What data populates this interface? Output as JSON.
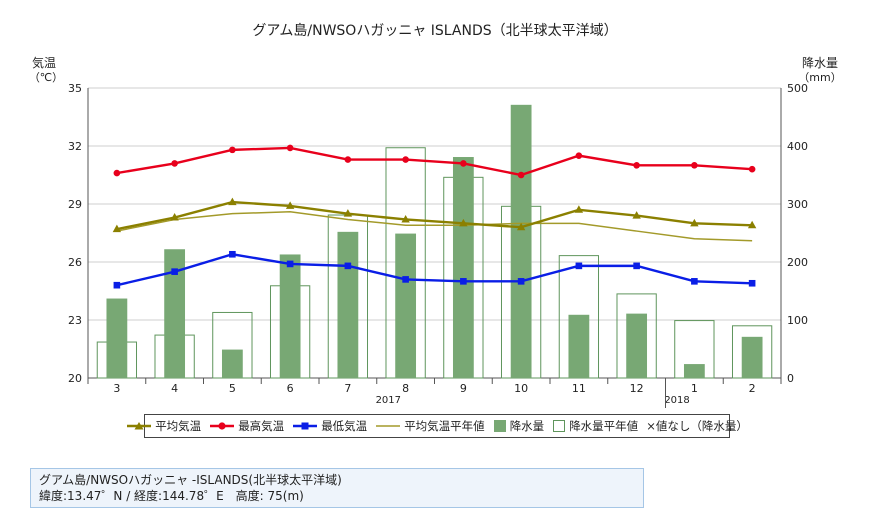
{
  "chart_data": {
    "type": "bar+line",
    "title": "グアム島/NWSOハガッニャ ISLANDS（北半球太平洋域）",
    "y_left_label": "気温",
    "y_left_unit": "（℃）",
    "y_right_label": "降水量",
    "y_right_unit": "（mm）",
    "y_left_range": [
      20,
      35
    ],
    "y_left_ticks": [
      20,
      23,
      26,
      29,
      32,
      35
    ],
    "y_right_range": [
      0,
      500
    ],
    "y_right_ticks": [
      0,
      100,
      200,
      300,
      400,
      500
    ],
    "categories": [
      "3",
      "4",
      "5",
      "6",
      "7",
      "8",
      "9",
      "10",
      "11",
      "12",
      "1",
      "2"
    ],
    "year_labels": [
      {
        "label": "2017",
        "category_index": 5
      },
      {
        "label": "2018",
        "category_index": 10
      }
    ],
    "grid": true,
    "legend_placement": "bottom",
    "series": [
      {
        "name": "平均気温",
        "kind": "line",
        "axis": "left",
        "marker": "triangle",
        "color": "#8b8000",
        "values": [
          27.7,
          28.3,
          29.1,
          28.9,
          28.5,
          28.2,
          28.0,
          27.8,
          28.7,
          28.4,
          28.0,
          27.9
        ]
      },
      {
        "name": "最高気温",
        "kind": "line",
        "axis": "left",
        "marker": "circle",
        "color": "#e8001c",
        "values": [
          30.6,
          31.1,
          31.8,
          31.9,
          31.3,
          31.3,
          31.1,
          30.5,
          31.5,
          31.0,
          31.0,
          30.8
        ]
      },
      {
        "name": "最低気温",
        "kind": "line",
        "axis": "left",
        "marker": "square",
        "color": "#0a1ee6",
        "values": [
          24.8,
          25.5,
          26.4,
          25.9,
          25.8,
          25.1,
          25.0,
          25.0,
          25.8,
          25.8,
          25.0,
          24.9
        ]
      },
      {
        "name": "平均気温平年値",
        "kind": "line",
        "axis": "left",
        "marker": "none",
        "color": "#a39a2a",
        "values": [
          27.6,
          28.2,
          28.5,
          28.6,
          28.2,
          27.9,
          27.9,
          28.0,
          28.0,
          27.6,
          27.2,
          27.1
        ]
      },
      {
        "name": "降水量",
        "kind": "bar",
        "axis": "right",
        "color": "#78a874",
        "values": [
          137,
          222,
          49,
          213,
          252,
          249,
          381,
          471,
          109,
          111,
          24,
          71
        ]
      },
      {
        "name": "降水量平年値",
        "kind": "bar-outline",
        "axis": "right",
        "color": "#5f955c",
        "values": [
          62,
          74,
          113,
          159,
          281,
          397,
          346,
          296,
          211,
          145,
          99,
          90
        ]
      }
    ]
  },
  "legend": {
    "items": [
      {
        "label": "平均気温",
        "icon": "olive-line-triangle-icon"
      },
      {
        "label": "最高気温",
        "icon": "red-line-circle-icon"
      },
      {
        "label": "最低気温",
        "icon": "blue-line-square-icon"
      },
      {
        "label": "平均気温平年値",
        "icon": "olive-thin-line-icon"
      },
      {
        "label": "降水量",
        "icon": "green-filled-square-icon"
      },
      {
        "label": "降水量平年値",
        "icon": "green-outline-square-icon"
      }
    ],
    "note": "×値なし（降水量）"
  },
  "info": {
    "line1": "グアム島/NWSOハガッニャ -ISLANDS(北半球太平洋域)",
    "line2": "緯度:13.47゜N / 経度:144.78゜E　高度: 75(m)"
  }
}
